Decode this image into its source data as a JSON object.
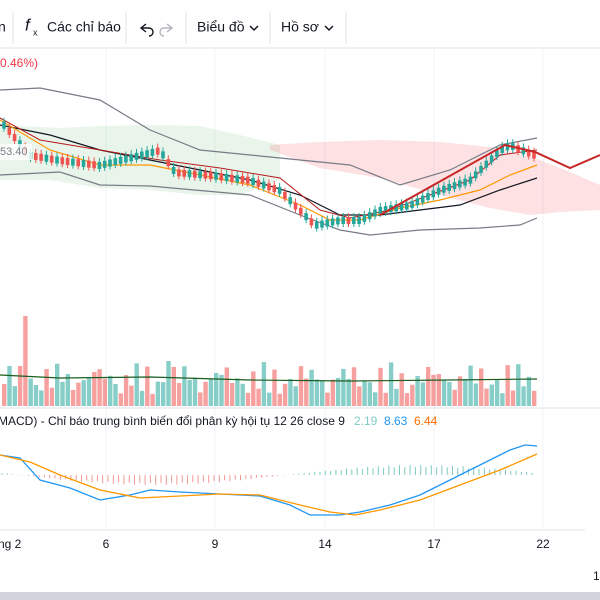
{
  "toolbar": {
    "partial_item": "n",
    "indicators": "Các chỉ báo",
    "chart_menu": "Biểu đồ",
    "profile_menu": "Hồ sơ"
  },
  "header": {
    "change": "0.46%)",
    "price_tag": "53.40"
  },
  "macd": {
    "legend": "MACD) - Chỉ báo trung bình biến đổi phân kỳ hội tụ 12 26 close 9",
    "histogram": "2.19",
    "macd": "8.63",
    "signal": "6.44"
  },
  "time_axis": {
    "labels": [
      "ng 2",
      "6",
      "9",
      "14",
      "17",
      "22"
    ],
    "corner": "1"
  }
}
